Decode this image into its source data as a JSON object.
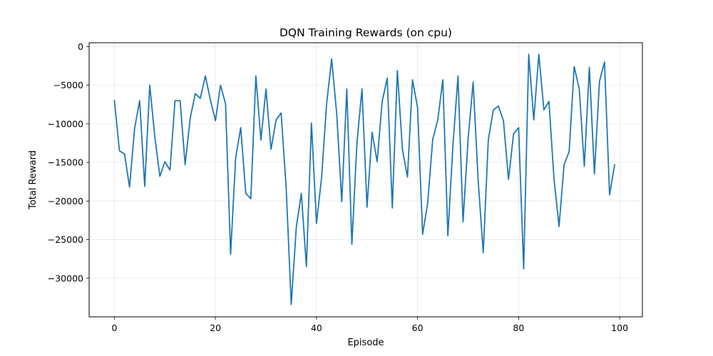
{
  "chart_data": {
    "type": "line",
    "title": "DQN Training Rewards (on cpu)",
    "xlabel": "Episode",
    "ylabel": "Total Reward",
    "xlim": [
      -5,
      104.5
    ],
    "ylim": [
      -35000,
      500
    ],
    "xticks": [
      0,
      20,
      40,
      60,
      80,
      100
    ],
    "yticks": [
      0,
      -5000,
      -10000,
      -15000,
      -20000,
      -25000,
      -30000
    ],
    "xtick_labels": [
      "0",
      "20",
      "40",
      "60",
      "80",
      "100"
    ],
    "ytick_labels": [
      "0",
      "−5000",
      "−10000",
      "−15000",
      "−20000",
      "−25000",
      "−30000"
    ],
    "grid": true,
    "legend": false,
    "series": [
      {
        "color": "#1f77b4",
        "x": [
          0,
          1,
          2,
          3,
          4,
          5,
          6,
          7,
          8,
          9,
          10,
          11,
          12,
          13,
          14,
          15,
          16,
          17,
          18,
          19,
          20,
          21,
          22,
          23,
          24,
          25,
          26,
          27,
          28,
          29,
          30,
          31,
          32,
          33,
          34,
          35,
          36,
          37,
          38,
          39,
          40,
          41,
          42,
          43,
          44,
          45,
          46,
          47,
          48,
          49,
          50,
          51,
          52,
          53,
          54,
          55,
          56,
          57,
          58,
          59,
          60,
          61,
          62,
          63,
          64,
          65,
          66,
          67,
          68,
          69,
          70,
          71,
          72,
          73,
          74,
          75,
          76,
          77,
          78,
          79,
          80,
          81,
          82,
          83,
          84,
          85,
          86,
          87,
          88,
          89,
          90,
          91,
          92,
          93,
          94,
          95,
          96,
          97,
          98,
          99
        ],
        "values": [
          -7000,
          -13500,
          -13900,
          -18200,
          -10600,
          -7000,
          -18100,
          -5000,
          -11700,
          -16800,
          -14900,
          -16000,
          -7000,
          -7000,
          -15300,
          -9300,
          -6100,
          -6700,
          -3800,
          -6900,
          -9600,
          -5000,
          -7400,
          -26900,
          -14400,
          -10500,
          -19000,
          -19700,
          -3800,
          -12100,
          -5500,
          -13300,
          -9500,
          -8600,
          -18300,
          -33400,
          -23400,
          -19000,
          -28500,
          -9900,
          -22900,
          -17000,
          -7400,
          -1600,
          -8700,
          -20100,
          -5500,
          -25600,
          -12500,
          -5500,
          -20800,
          -11100,
          -14900,
          -7100,
          -4100,
          -20900,
          -3100,
          -13300,
          -16900,
          -4300,
          -7900,
          -24300,
          -20300,
          -12000,
          -9500,
          -4300,
          -24500,
          -12800,
          -3800,
          -22700,
          -12000,
          -4600,
          -17400,
          -26700,
          -12100,
          -8200,
          -7700,
          -9600,
          -17200,
          -11300,
          -10500,
          -28800,
          -1000,
          -9500,
          -1000,
          -8200,
          -7100,
          -17100,
          -23300,
          -15300,
          -13600,
          -2600,
          -5500,
          -15500,
          -2700,
          -16500,
          -4500,
          -2000,
          -19200,
          -15300
        ]
      }
    ]
  }
}
